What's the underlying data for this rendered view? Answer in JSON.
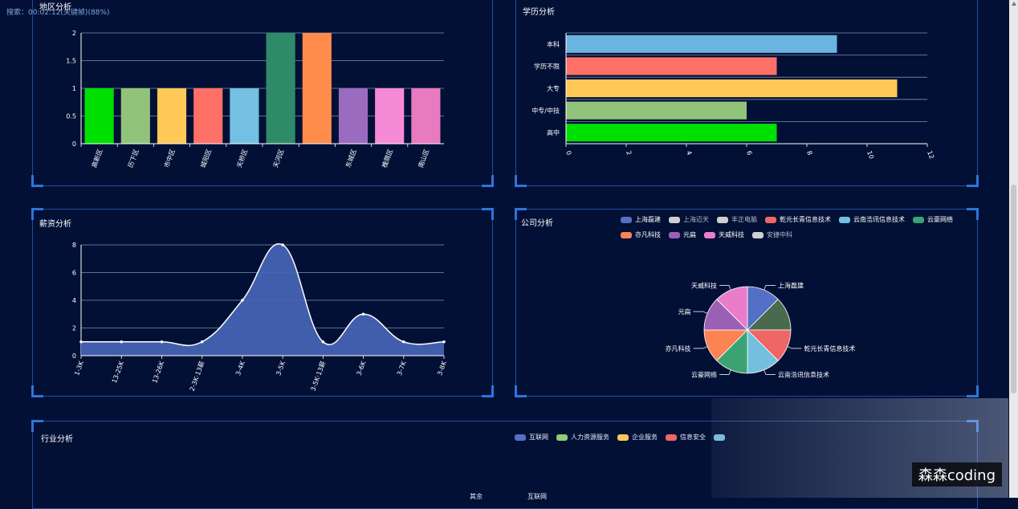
{
  "search_text": "搜索：00:02:12(关键帧)(88%)",
  "watermark": "森森coding",
  "panels": {
    "region": {
      "title": "地区分析"
    },
    "education": {
      "title": "学历分析"
    },
    "salary": {
      "title": "薪资分析"
    },
    "company": {
      "title": "公司分析"
    },
    "industry": {
      "title": "行业分析"
    }
  },
  "industry_legend": [
    {
      "name": "互联网",
      "color": "#5470c6"
    },
    {
      "name": "人力资源服务",
      "color": "#91cc75"
    },
    {
      "name": "企业服务",
      "color": "#fac858"
    },
    {
      "name": "信息安全",
      "color": "#ee6666"
    },
    {
      "name": "",
      "color": "#73c0de"
    }
  ],
  "industry_pie_labels": [
    "其余",
    "互联网"
  ],
  "chart_data": [
    {
      "id": "region",
      "type": "bar",
      "title": "地区分析",
      "categories": [
        "高新区",
        "历下区",
        "市中区",
        "城阳区",
        "天桥区",
        "天河区",
        "",
        "东城区",
        "槐荫区",
        "南山区"
      ],
      "values": [
        1,
        1,
        1,
        1,
        1,
        2,
        2,
        1,
        1,
        1
      ],
      "colors": [
        "#00e000",
        "#91c47a",
        "#ffc857",
        "#ff7166",
        "#73c0e3",
        "#2e8b6a",
        "#ff8c4a",
        "#9b6bbf",
        "#f78ad6",
        "#e87abf"
      ],
      "ylim": [
        0,
        2
      ],
      "yticks": [
        "0",
        "0.5",
        "1",
        "1.5",
        "2"
      ]
    },
    {
      "id": "education",
      "type": "bar",
      "orientation": "horizontal",
      "title": "学历分析",
      "categories": [
        "本科",
        "学历不限",
        "大专",
        "中专/中技",
        "高中"
      ],
      "values": [
        9,
        7,
        11,
        6,
        7
      ],
      "colors": [
        "#6cb4e0",
        "#ff7166",
        "#ffc857",
        "#91c47a",
        "#00e000"
      ],
      "xlim": [
        0,
        12
      ],
      "xticks": [
        "0",
        "2",
        "4",
        "6",
        "8",
        "10",
        "12"
      ]
    },
    {
      "id": "salary",
      "type": "area",
      "title": "薪资分析",
      "categories": [
        "1-3K",
        "13-25K",
        "13-26K",
        "2-3K·13薪",
        "3-4K",
        "3-5K",
        "3-5K·13薪",
        "3-6K",
        "3-7K",
        "3-8K"
      ],
      "values": [
        1,
        1,
        1,
        1,
        4,
        8,
        1,
        3,
        1,
        1
      ],
      "ylim": [
        0,
        8
      ],
      "yticks": [
        "0",
        "2",
        "4",
        "6",
        "8"
      ],
      "color": "#4463b4"
    },
    {
      "id": "company",
      "type": "pie",
      "title": "公司分析",
      "legend": [
        {
          "name": "上海磊建",
          "color": "#5470c6",
          "active": true
        },
        {
          "name": "上海迈天",
          "color": "#cfcfcf",
          "active": false
        },
        {
          "name": "丰正电脑",
          "color": "#cfcfcf",
          "active": false
        },
        {
          "name": "乾元长青信息技术",
          "color": "#ee6666",
          "active": true
        },
        {
          "name": "云南浩讯信息技术",
          "color": "#73c0de",
          "active": true
        },
        {
          "name": "云豪网络",
          "color": "#3ba272",
          "active": true
        },
        {
          "name": "亦凡科技",
          "color": "#fc8452",
          "active": true
        },
        {
          "name": "元扁",
          "color": "#9a60b4",
          "active": true
        },
        {
          "name": "天威科技",
          "color": "#ea7ccc",
          "active": true
        },
        {
          "name": "安捷中科",
          "color": "#cfcfcf",
          "active": false
        }
      ],
      "slices": [
        {
          "name": "上海磊建",
          "value": 1,
          "color": "#5470c6"
        },
        {
          "name": "",
          "value": 1,
          "color": "#4a6a4e"
        },
        {
          "name": "乾元长青信息技术",
          "value": 1,
          "color": "#ee6666"
        },
        {
          "name": "云南浩讯信息技术",
          "value": 1,
          "color": "#73c0de"
        },
        {
          "name": "云豪网络",
          "value": 1,
          "color": "#3ba272"
        },
        {
          "name": "亦凡科技",
          "value": 1,
          "color": "#fc8452"
        },
        {
          "name": "元扁",
          "value": 1,
          "color": "#9a60b4"
        },
        {
          "name": "天威科技",
          "value": 1,
          "color": "#ea7ccc"
        }
      ]
    }
  ]
}
